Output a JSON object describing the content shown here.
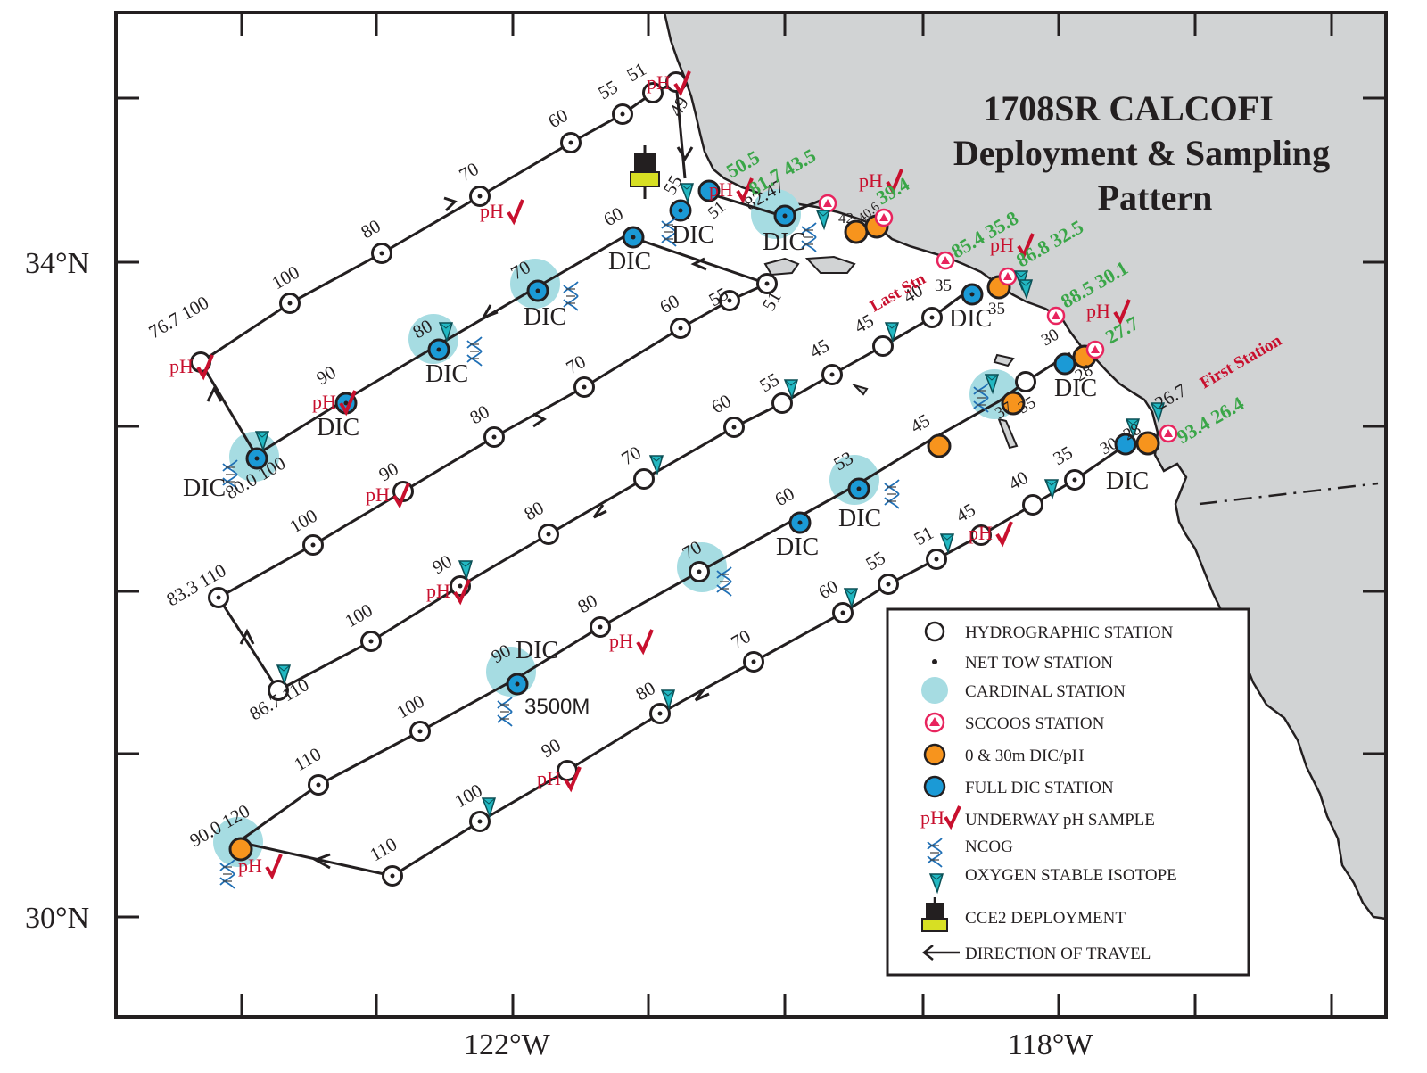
{
  "title": {
    "line1": "1708SR CALCOFI",
    "line2": "Deployment & Sampling",
    "line3": "Pattern"
  },
  "axes": {
    "lat_labels": [
      "34°N",
      "30°N"
    ],
    "lon_labels": [
      "122°W",
      "118°W"
    ]
  },
  "colors": {
    "land": "#d1d3d4",
    "cardinal": "#a6dce2",
    "full_dic": "#1b9ad6",
    "dic_ph_30m": "#f7941d",
    "sccoos": "#e8245e",
    "ph_mark": "#c8102e",
    "green_text": "#3aa648",
    "isotope": "#22b8c2",
    "dna_blue": "#1f6fb5"
  },
  "annotations": {
    "last_station": "Last Stn",
    "first_station": "First Station",
    "depth": "3500M",
    "ph": "pH",
    "dic": "DIC"
  },
  "stations": [
    {
      "label": "76.7 100"
    },
    {
      "label": "80.0 100"
    },
    {
      "label": "83.3 110"
    },
    {
      "label": "86.7 110"
    },
    {
      "label": "90.0 120"
    },
    {
      "label": "26.7"
    },
    {
      "label": "82.47"
    },
    {
      "label": "42"
    },
    {
      "label": "40.6"
    }
  ],
  "line_labels": [
    "100",
    "90",
    "80",
    "70",
    "60",
    "55",
    "51",
    "49",
    "45",
    "40",
    "35",
    "37",
    "30",
    "28",
    "53",
    "110"
  ],
  "green_labels": [
    "50.5",
    "81.7 43.5",
    "39.4",
    "85.4 35.8",
    "86.8 32.5",
    "88.5 30.1",
    "27.7",
    "93.4 26.4"
  ],
  "legend": {
    "items": [
      {
        "label": "HYDROGRAPHIC STATION",
        "icon": "hydrographic-circle"
      },
      {
        "label": "NET TOW STATION",
        "icon": "net-tow-dot"
      },
      {
        "label": "CARDINAL STATION",
        "icon": "cardinal-disc"
      },
      {
        "label": "SCCOOS STATION",
        "icon": "sccoos-triangle"
      },
      {
        "label": "0 & 30m DIC/pH",
        "icon": "orange-station"
      },
      {
        "label": "FULL DIC STATION",
        "icon": "blue-station"
      },
      {
        "label": "UNDERWAY pH SAMPLE",
        "icon": "ph-check"
      },
      {
        "label": "NCOG",
        "icon": "dna-helix"
      },
      {
        "label": "OXYGEN STABLE ISOTOPE",
        "icon": "isotope-drop"
      },
      {
        "label": "CCE2 DEPLOYMENT",
        "icon": "buoy"
      },
      {
        "label": "DIRECTION OF TRAVEL",
        "icon": "arrow-left"
      }
    ]
  }
}
